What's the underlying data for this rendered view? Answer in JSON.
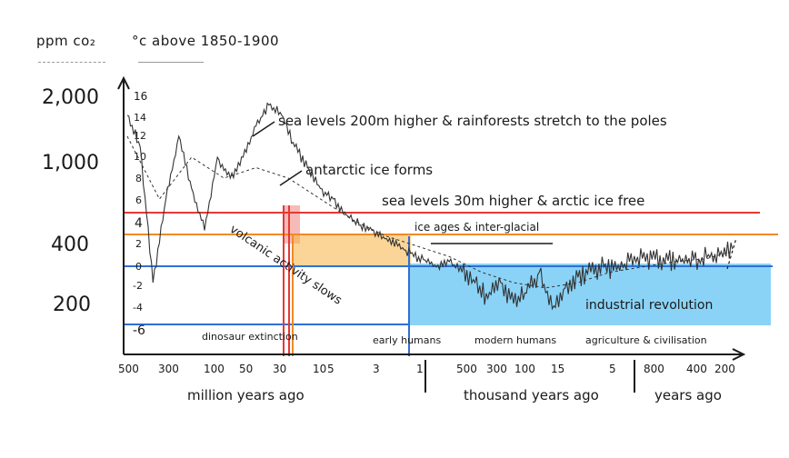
{
  "header": {
    "ppm_label": "ppm co₂",
    "temp_label": "°c above 1850-1900"
  },
  "chart_data": {
    "type": "line",
    "ppm_ticks": [
      "2,000",
      "1,000",
      "400",
      "200"
    ],
    "temp_ticks": [
      "16",
      "14",
      "12",
      "10",
      "8",
      "6",
      "4",
      "2",
      "0",
      "-2",
      "-4",
      "-6"
    ],
    "x_ticks": [
      "500",
      "300",
      "100",
      "50",
      "30",
      "10",
      "5",
      "3",
      "1",
      "500",
      "300",
      "100",
      "15",
      "5",
      "800",
      "400",
      "200"
    ],
    "x_sections": [
      "million years ago",
      "thousand years ago",
      "years ago"
    ],
    "thresholds": [
      {
        "label": "sea levels 30m higher & arctic ice free",
        "temp": 4,
        "color": "#e53935"
      },
      {
        "label": "ice ages & inter-glacial",
        "temp": 2,
        "color": "#f08a24"
      },
      {
        "label": "",
        "temp": 0,
        "color": "#2f6fd6"
      },
      {
        "label": "",
        "temp": -6,
        "color": "#2f6fd6"
      }
    ],
    "annotations": [
      "sea levels 200m higher & rainforests stretch to the poles",
      "antarctic ice forms",
      "volcanic activity slows",
      "industrial revolution"
    ],
    "eras": [
      "dinosaur extinction",
      "early humans",
      "modern humans",
      "agriculture & civilisation"
    ],
    "temperature_series": {
      "name": "",
      "x_ticks_pos": [
        0,
        0.5,
        1,
        1.6,
        2.3,
        3.0,
        3.5,
        4.2,
        5.0,
        5.6,
        6.1,
        6.6,
        7.2,
        8.0,
        8.3,
        9.1,
        9.6
      ],
      "x": [
        0.0,
        0.2,
        0.4,
        0.6,
        0.8,
        1.0,
        1.2,
        1.4,
        1.6,
        1.8,
        2.0,
        2.2,
        2.4,
        2.6,
        2.8,
        3.0,
        3.2,
        3.4,
        3.6,
        3.8,
        4.0,
        4.2,
        4.4,
        4.6,
        4.8,
        5.0,
        5.2,
        5.4,
        5.6,
        5.8,
        6.0,
        6.2,
        6.4,
        6.6,
        6.8,
        7.0,
        7.2,
        7.4,
        7.6,
        7.8,
        8.0,
        8.2,
        8.4,
        8.6,
        8.8,
        9.0,
        9.2,
        9.4
      ],
      "temp": [
        14,
        11,
        -2,
        6,
        12,
        7,
        3,
        10,
        8,
        10,
        13,
        15,
        14,
        11,
        9,
        7,
        6,
        4.5,
        3.5,
        3,
        2.2,
        1.5,
        0.8,
        0.2,
        -0.5,
        0,
        -1,
        -2,
        -3.5,
        -2,
        -4,
        -3,
        -1,
        -4.5,
        -2.5,
        -1.5,
        -1,
        -0.5,
        -0.8,
        0,
        0.3,
        0.2,
        0.1,
        0.0,
        0.2,
        0.4,
        0.6,
        1.2
      ]
    },
    "co2_series": {
      "name": "",
      "x": [
        0.0,
        0.5,
        1.0,
        1.5,
        2.0,
        2.5,
        3.0,
        3.5,
        4.0,
        4.5,
        5.0,
        5.5,
        6.0,
        6.5,
        7.0,
        7.5,
        8.0,
        8.5,
        9.0,
        9.4
      ],
      "temp": [
        12,
        6,
        10,
        8,
        9,
        8,
        6,
        4,
        2.5,
        1.5,
        0.5,
        -1,
        -2,
        -2.5,
        -2,
        -1,
        -0.5,
        0,
        0.3,
        1
      ]
    }
  }
}
